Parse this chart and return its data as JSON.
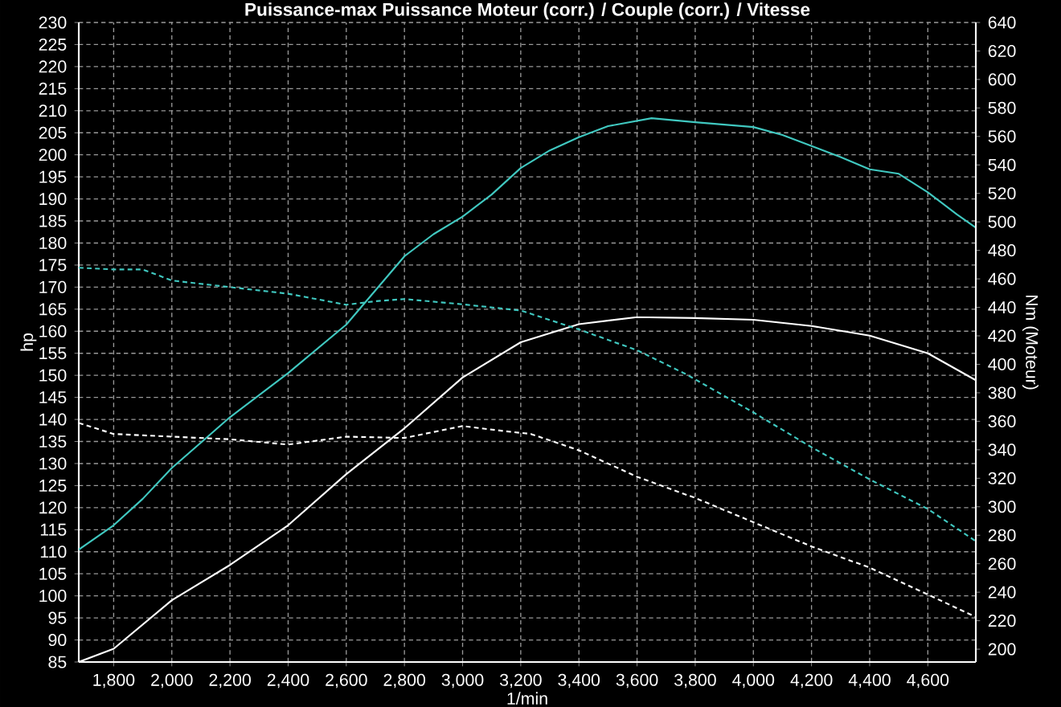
{
  "chart_data": {
    "type": "line",
    "title": "Puissance-max Puissance Moteur (corr.) / Couple (corr.) / Vitesse",
    "xlabel": "1/min",
    "ylabel": "hp",
    "y2label": "Nm (Moteur)",
    "xlim": [
      1680,
      4765
    ],
    "ylim": [
      85,
      230
    ],
    "y2lim": [
      191,
      640
    ],
    "xticks": [
      {
        "value": 1800,
        "label": "1,800"
      },
      {
        "value": 2000,
        "label": "2,000"
      },
      {
        "value": 2200,
        "label": "2,200"
      },
      {
        "value": 2400,
        "label": "2,400"
      },
      {
        "value": 2600,
        "label": "2,600"
      },
      {
        "value": 2800,
        "label": "2,800"
      },
      {
        "value": 3000,
        "label": "3,000"
      },
      {
        "value": 3200,
        "label": "3,200"
      },
      {
        "value": 3400,
        "label": "3,400"
      },
      {
        "value": 3600,
        "label": "3,600"
      },
      {
        "value": 3800,
        "label": "3,800"
      },
      {
        "value": 4000,
        "label": "4,000"
      },
      {
        "value": 4200,
        "label": "4,200"
      },
      {
        "value": 4400,
        "label": "4,400"
      },
      {
        "value": 4600,
        "label": "4,600"
      }
    ],
    "yticks": [
      85,
      90,
      95,
      100,
      105,
      110,
      115,
      120,
      125,
      130,
      135,
      140,
      145,
      150,
      155,
      160,
      165,
      170,
      175,
      180,
      185,
      190,
      195,
      200,
      205,
      210,
      215,
      220,
      225,
      230
    ],
    "y2ticks": [
      200,
      220,
      240,
      260,
      280,
      300,
      320,
      340,
      360,
      380,
      400,
      420,
      440,
      460,
      480,
      500,
      520,
      540,
      560,
      580,
      600,
      620,
      640
    ],
    "grid": true,
    "marker": "none",
    "series": [
      {
        "color": "#40c8c0",
        "line_style": "solid",
        "x": [
          1680,
          1800,
          1900,
          2000,
          2200,
          2400,
          2600,
          2800,
          2900,
          3000,
          3100,
          3200,
          3300,
          3400,
          3500,
          3650,
          3800,
          4000,
          4100,
          4200,
          4300,
          4400,
          4500,
          4600,
          4700,
          4765
        ],
        "values": [
          110.5,
          116,
          122,
          129,
          140.5,
          150.5,
          161.5,
          177,
          182,
          186,
          191,
          197,
          201,
          204,
          206.5,
          208.3,
          207.4,
          206.3,
          204.5,
          202,
          199.5,
          196.7,
          195.7,
          191.5,
          186.5,
          183.5
        ]
      },
      {
        "color": "#ffffff",
        "line_style": "solid",
        "x": [
          1680,
          1800,
          2000,
          2200,
          2400,
          2600,
          2800,
          3000,
          3200,
          3400,
          3600,
          3800,
          4000,
          4200,
          4400,
          4600,
          4765
        ],
        "values": [
          85,
          88,
          99,
          107,
          116,
          127.6,
          138,
          149.5,
          157.5,
          161.6,
          163.2,
          163,
          162.6,
          161.2,
          159,
          155,
          148.9
        ]
      },
      {
        "color": "#40c8c0",
        "line_style": "dashed",
        "x": [
          1680,
          1800,
          1900,
          2000,
          2200,
          2400,
          2600,
          2700,
          2800,
          3000,
          3200,
          3400,
          3600,
          3770,
          4000,
          4200,
          4400,
          4600,
          4765
        ],
        "values": [
          174.4,
          174,
          174,
          171.5,
          170,
          168.5,
          166,
          166.8,
          167.3,
          166.1,
          164.7,
          160.4,
          155.7,
          150.2,
          141.6,
          133.7,
          126.4,
          119.7,
          112.4
        ]
      },
      {
        "color": "#ffffff",
        "line_style": "dashed",
        "x": [
          1680,
          1800,
          2000,
          2200,
          2400,
          2600,
          2800,
          3000,
          3150,
          3235,
          3400,
          3600,
          3800,
          4000,
          4200,
          4400,
          4600,
          4765
        ],
        "values": [
          139.2,
          136.7,
          136.1,
          135.5,
          134.3,
          136.1,
          135.8,
          138.5,
          137.3,
          136.7,
          133,
          127,
          122.2,
          116.7,
          111.2,
          106.4,
          100.3,
          95.2
        ]
      }
    ]
  }
}
